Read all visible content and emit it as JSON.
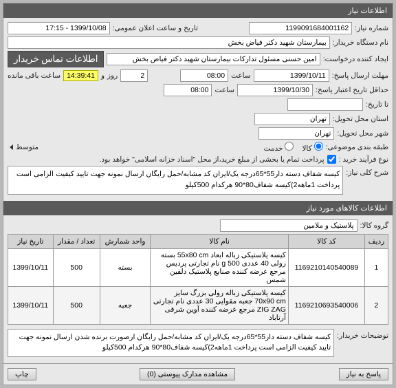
{
  "sections": {
    "info_header": "اطلاعات نیاز",
    "items_header": "اطلاعات کالاهای مورد نیاز"
  },
  "labels": {
    "req_no": "شماره نیاز:",
    "org_name": "نام دستگاه خریدار:",
    "creator": "ایجاد کننده درخواست:",
    "deadline_send": "مهلت ارسال پاسخ:",
    "deadline_valid": "حداقل تاریخ اعتبار پاسخ:",
    "until": "تا تاریخ:",
    "delivery_state": "استان محل تحویل:",
    "delivery_city": "شهر محل تحویل:",
    "budget_type": "طبقه بندی موضوعی:",
    "process_type": "نوع فرآیند خرید :",
    "main_desc": "شرح کلی نیاز:",
    "item_group": "گروه کالا:",
    "extra_desc": "توضیحات خریدار:",
    "public_date": "تاریخ و ساعت اعلان عمومی:",
    "contact_btn": "اطلاعات تماس خریدار",
    "hour": "ساعت",
    "and": "و",
    "day": "روز",
    "remaining": "ساعت باقی مانده",
    "goods": "کالا",
    "service": "خدمت",
    "average": "متوسط",
    "attachments_btn": "مشاهده مدارک پیوستی (0)",
    "reply_btn": "پاسخ به نیاز",
    "print_btn": "چاپ"
  },
  "values": {
    "req_no": "1199091684001162",
    "org_name": "بیمارستان شهید دکتر فیاض بخش",
    "creator": "امین حسنی مسئول تدارکات بیمارستان شهید دکتر فیاض بخش",
    "public_date": "1399/10/08 - 17:15",
    "deadline_date": "1399/10/11",
    "deadline_time": "08:00",
    "countdown_days": "2",
    "countdown_time": "14:39:41",
    "valid_date": "1399/10/30",
    "valid_time": "08:00",
    "delivery_state": "تهران",
    "delivery_city": "تهران",
    "process_note": "پرداخت تمام یا بخشی از مبلغ خرید،از محل \"اسناد خزانه اسلامی\" خواهد بود.",
    "main_desc": "کیسه شفاف دسته دار55*65درجه یک/ایران کد مشابه/حمل رایگان ارسال نمونه جهت تایید کیفیت الزامی است پرداخت 1ماهه2)کیسه شفاف80*90 هرکدام 500کیلو",
    "item_group": "پلاستیک و ملامین",
    "extra_desc": "کیسه شفاف دسته دار55*65درجه یک/ایران کد مشابه/حمل رایگان ارصورت برنده شدن ارسال نمونه جهت تایید کیفیت الزامی است پرداخت 1ماهه2)کیسه شفاف80*90 هرکدام 500کیلو"
  },
  "table": {
    "columns": [
      "ردیف",
      "کد کالا",
      "نام کالا",
      "واحد شمارش",
      "تعداد / مقدار",
      "تاریخ نیاز"
    ],
    "rows": [
      [
        "1",
        "1169210140540089",
        "کیسه پلاستیکی زباله ابعاد 55x80 cm بسته رولی 40 عددی 500 g نام تجارتی پردیس مرجع عرضه کننده صنایع پلاستیک دلفین شمس",
        "بسته",
        "500",
        "1399/10/11"
      ],
      [
        "2",
        "1169210693540006",
        "کیسه پلاستیکی زباله رولی بزرگ سایز 70x90 cm جعبه مقوایی 30 عددی نام تجارتی ZIG ZAG مرجع عرضه کننده آوین شرقی آرتاباد",
        "جعبه",
        "500",
        "1399/10/11"
      ]
    ]
  },
  "colors": {
    "header_bg": "#5a5a5a",
    "countdown_bg": "#ffff66",
    "panel_bg": "#e8e8e8"
  }
}
